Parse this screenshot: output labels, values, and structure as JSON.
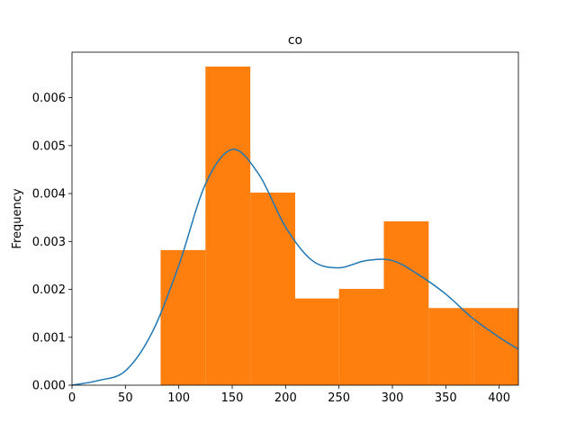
{
  "chart_data": {
    "type": "bar",
    "title": "co",
    "xlabel": "",
    "ylabel": "Frequency",
    "xlim": [
      0,
      418
    ],
    "ylim": [
      0,
      0.00695
    ],
    "xticks": [
      0,
      50,
      100,
      150,
      200,
      250,
      300,
      350,
      400
    ],
    "xtick_labels": [
      "0",
      "50",
      "100",
      "150",
      "200",
      "250",
      "300",
      "350",
      "400"
    ],
    "yticks": [
      0,
      0.001,
      0.002,
      0.003,
      0.004,
      0.005,
      0.006
    ],
    "ytick_labels": [
      "0.000",
      "0.001",
      "0.002",
      "0.003",
      "0.004",
      "0.005",
      "0.006"
    ],
    "grid": false,
    "histogram": {
      "color": "#ff7f0e",
      "bins": [
        {
          "x0": 83,
          "x1": 125,
          "density": 0.00282
        },
        {
          "x0": 125,
          "x1": 167,
          "density": 0.00665
        },
        {
          "x0": 167,
          "x1": 209,
          "density": 0.00402
        },
        {
          "x0": 209,
          "x1": 250,
          "density": 0.00181
        },
        {
          "x0": 250,
          "x1": 292,
          "density": 0.00201
        },
        {
          "x0": 292,
          "x1": 334,
          "density": 0.00342
        },
        {
          "x0": 334,
          "x1": 376,
          "density": 0.00161
        },
        {
          "x0": 376,
          "x1": 418,
          "density": 0.00161
        }
      ]
    },
    "kde": {
      "color": "#1f77b4",
      "x": [
        0,
        25,
        50,
        75,
        100,
        125,
        150,
        175,
        200,
        225,
        250,
        275,
        300,
        325,
        350,
        375,
        400,
        418
      ],
      "y": [
        0.0,
        0.0001,
        0.0003,
        0.0011,
        0.0025,
        0.0042,
        0.00492,
        0.0044,
        0.0033,
        0.0026,
        0.00245,
        0.0026,
        0.0026,
        0.0023,
        0.0019,
        0.0014,
        0.001,
        0.00075
      ]
    }
  }
}
